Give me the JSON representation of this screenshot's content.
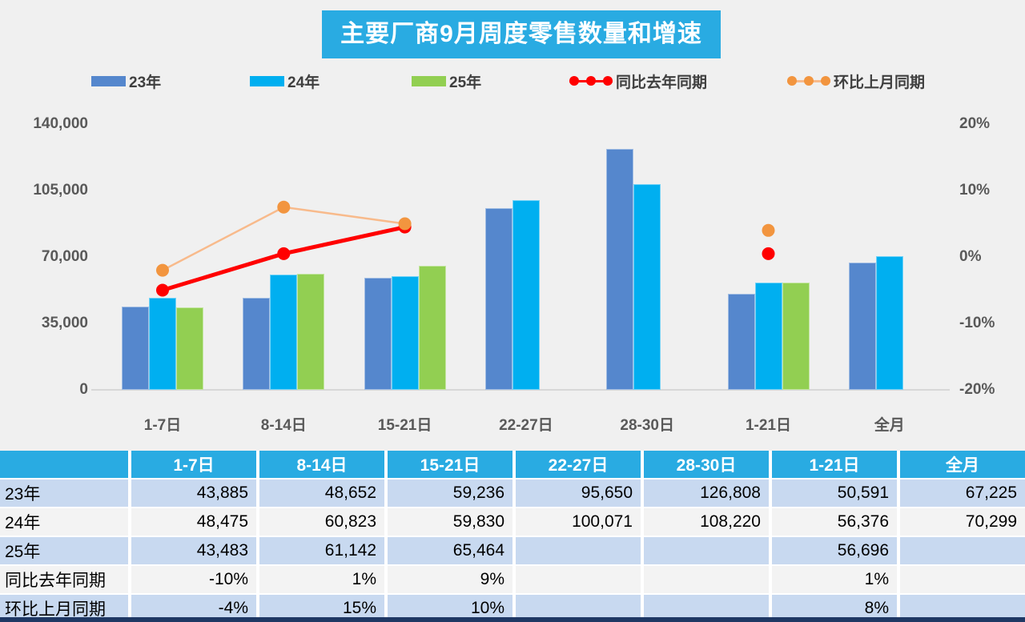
{
  "title": "主要厂商9月周度零售数量和增速",
  "legend": {
    "items": [
      {
        "label": "23年",
        "type": "swatch",
        "color": "#5587CD"
      },
      {
        "label": "24年",
        "type": "swatch",
        "color": "#00AFF0"
      },
      {
        "label": "25年",
        "type": "swatch",
        "color": "#92CF52"
      },
      {
        "label": "同比去年同期",
        "type": "line",
        "line_color": "#FF0000",
        "marker_color": "#FF0000"
      },
      {
        "label": "环比上月同期",
        "type": "line",
        "line_color": "#F8BA8B",
        "marker_color": "#F2953F"
      }
    ]
  },
  "chart_data": {
    "type": "bar",
    "title": "主要厂商9月周度零售数量和增速",
    "categories": [
      "1-7日",
      "8-14日",
      "15-21日",
      "22-27日",
      "28-30日",
      "1-21日",
      "全月"
    ],
    "series": [
      {
        "name": "23年",
        "type": "bar",
        "color": "#5587CD",
        "values": [
          43885,
          48652,
          59236,
          95650,
          126808,
          50591,
          67225
        ]
      },
      {
        "name": "24年",
        "type": "bar",
        "color": "#00AFF0",
        "values": [
          48475,
          60823,
          59830,
          100071,
          108220,
          56376,
          70299
        ]
      },
      {
        "name": "25年",
        "type": "bar",
        "color": "#92CF52",
        "values": [
          43483,
          61142,
          65464,
          null,
          null,
          56696,
          null
        ]
      },
      {
        "name": "同比去年同期",
        "type": "line",
        "axis": "right",
        "line_color": "#FF0000",
        "marker_color": "#FF0000",
        "values": [
          -10,
          1,
          9,
          null,
          null,
          1,
          null
        ]
      },
      {
        "name": "环比上月同期",
        "type": "line",
        "axis": "right",
        "line_color": "#F8BA8B",
        "marker_color": "#F2953F",
        "values": [
          -4,
          15,
          10,
          null,
          null,
          8,
          null
        ]
      }
    ],
    "left_axis": {
      "label": "",
      "min": 0,
      "max": 140000,
      "ticks": [
        "140,000",
        "105,000",
        "70,000",
        "35,000",
        "0"
      ],
      "tick_values": [
        140000,
        105000,
        70000,
        35000,
        0
      ]
    },
    "right_axis": {
      "label": "",
      "min": -20,
      "max": 20,
      "ticks": [
        "20%",
        "10%",
        "0%",
        "-10%",
        "-20%"
      ],
      "tick_values": [
        20,
        10,
        0,
        -10,
        -20
      ]
    },
    "grid": "off",
    "legend_position": "top"
  },
  "table": {
    "columns": [
      "",
      "1-7日",
      "8-14日",
      "15-21日",
      "22-27日",
      "28-30日",
      "1-21日",
      "全月"
    ],
    "rows": [
      {
        "label": "23年",
        "values": [
          "43,885",
          "48,652",
          "59,236",
          "95,650",
          "126,808",
          "50,591",
          "67,225"
        ]
      },
      {
        "label": "24年",
        "values": [
          "48,475",
          "60,823",
          "59,830",
          "100,071",
          "108,220",
          "56,376",
          "70,299"
        ]
      },
      {
        "label": "25年",
        "values": [
          "43,483",
          "61,142",
          "65,464",
          "",
          "",
          "56,696",
          ""
        ]
      },
      {
        "label": "同比去年同期",
        "values": [
          "-10%",
          "1%",
          "9%",
          "",
          "",
          "1%",
          ""
        ]
      },
      {
        "label": "环比上月同期",
        "values": [
          "-4%",
          "15%",
          "10%",
          "",
          "",
          "8%",
          ""
        ]
      }
    ]
  },
  "colors": {
    "title_bg": "#29ABE2",
    "table_header_bg": "#29ABE2",
    "row_blue": "#C8D9F0",
    "row_gray": "#F3F3F3",
    "page_bg": "#F0F0F0",
    "axis_text": "#595959",
    "bottom_strip": "#1F3864"
  }
}
